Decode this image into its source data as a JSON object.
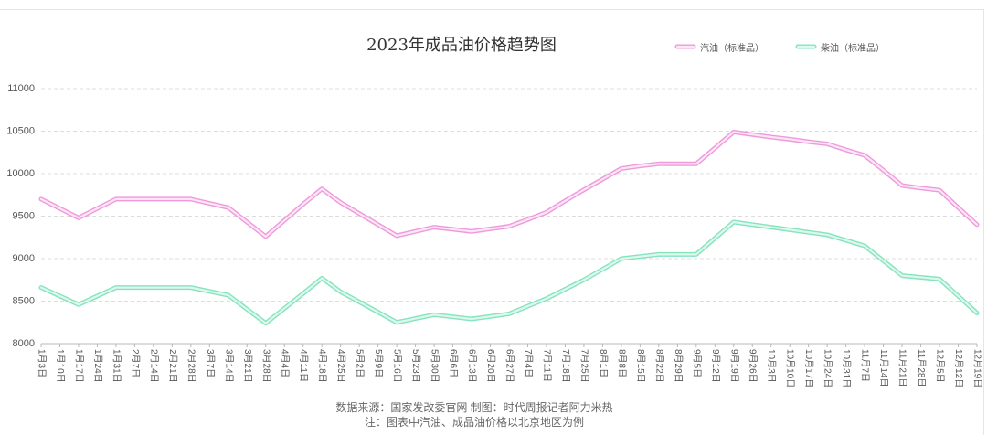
{
  "chart_data": {
    "type": "line",
    "title": "2023年成品油价格趋势图",
    "categories": [
      "1月3日",
      "1月10日",
      "1月17日",
      "1月24日",
      "1月31日",
      "2月7日",
      "2月14日",
      "2月21日",
      "2月28日",
      "3月7日",
      "3月14日",
      "3月21日",
      "3月28日",
      "4月4日",
      "4月11日",
      "4月18日",
      "4月25日",
      "5月2日",
      "5月9日",
      "5月16日",
      "5月23日",
      "5月30日",
      "6月6日",
      "6月13日",
      "6月20日",
      "6月27日",
      "7月4日",
      "7月11日",
      "7月18日",
      "7月25日",
      "8月1日",
      "8月8日",
      "8月15日",
      "8月22日",
      "8月29日",
      "9月5日",
      "9月12日",
      "9月19日",
      "9月26日",
      "10月3日",
      "10月10日",
      "10月17日",
      "10月24日",
      "10月31日",
      "11月7日",
      "11月14日",
      "11月21日",
      "11月28日",
      "12月5日",
      "12月12日",
      "12月19日"
    ],
    "series": [
      {
        "name": "汽油（标准品）",
        "color": "#ee9adb",
        "inner_color": "#fce6f6",
        "values": [
          9700,
          9590,
          9480,
          9590,
          9700,
          9700,
          9700,
          9700,
          9700,
          9650,
          9600,
          9430,
          9260,
          9450,
          9640,
          9820,
          9660,
          9530,
          9400,
          9270,
          9320,
          9370,
          9345,
          9320,
          9350,
          9380,
          9460,
          9545,
          9680,
          9810,
          9935,
          10060,
          10090,
          10115,
          10115,
          10115,
          10300,
          10490,
          10460,
          10430,
          10405,
          10375,
          10350,
          10280,
          10215,
          10040,
          9860,
          9830,
          9805,
          9600,
          9400
        ]
      },
      {
        "name": "柴油（标准品）",
        "color": "#86e3bf",
        "inner_color": "#ddf8ec",
        "values": [
          8660,
          8560,
          8460,
          8560,
          8660,
          8660,
          8660,
          8660,
          8660,
          8615,
          8570,
          8405,
          8240,
          8415,
          8590,
          8770,
          8610,
          8490,
          8370,
          8250,
          8295,
          8340,
          8315,
          8290,
          8320,
          8350,
          8440,
          8530,
          8640,
          8750,
          8875,
          9000,
          9025,
          9050,
          9050,
          9050,
          9240,
          9430,
          9400,
          9370,
          9340,
          9310,
          9280,
          9215,
          9150,
          8975,
          8800,
          8780,
          8760,
          8560,
          8360
        ]
      }
    ],
    "ylim": [
      8000,
      11000
    ],
    "yticks": [
      8000,
      8500,
      9000,
      9500,
      10000,
      10500,
      11000
    ],
    "grid": true,
    "legend_position": "top-right"
  },
  "footer": {
    "source": "数据来源：国家发改委官网 制图：时代周报记者阿力米热",
    "note": "注：图表中汽油、成品油价格以北京地区为例"
  }
}
